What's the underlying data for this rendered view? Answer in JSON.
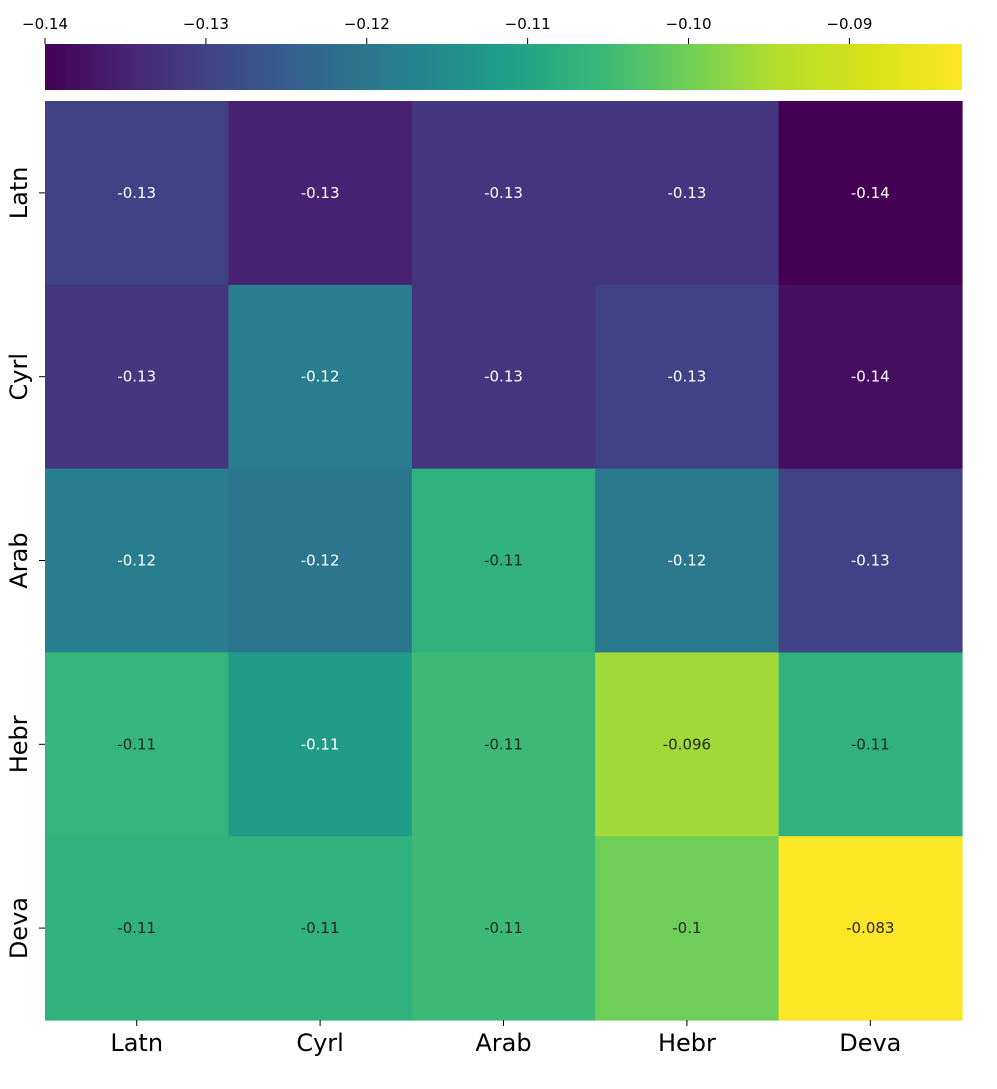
{
  "chart_data": {
    "type": "heatmap",
    "title": "",
    "xlabel": "",
    "ylabel": "",
    "rows": [
      "Latn",
      "Cyrl",
      "Arab",
      "Hebr",
      "Deva"
    ],
    "columns": [
      "Latn",
      "Cyrl",
      "Arab",
      "Hebr",
      "Deva"
    ],
    "values": [
      [
        -0.1301,
        -0.1352,
        -0.1321,
        -0.1321,
        -0.14
      ],
      [
        -0.1321,
        -0.1181,
        -0.1321,
        -0.1301,
        -0.1381
      ],
      [
        -0.1181,
        -0.1201,
        -0.1071,
        -0.1191,
        -0.1301
      ],
      [
        -0.1061,
        -0.1121,
        -0.1051,
        -0.096,
        -0.1071
      ],
      [
        -0.1071,
        -0.1071,
        -0.1051,
        -0.1,
        -0.083
      ]
    ],
    "annotations": [
      [
        "-0.13",
        "-0.13",
        "-0.13",
        "-0.13",
        "-0.14"
      ],
      [
        "-0.13",
        "-0.12",
        "-0.13",
        "-0.13",
        "-0.14"
      ],
      [
        "-0.12",
        "-0.12",
        "-0.11",
        "-0.12",
        "-0.13"
      ],
      [
        "-0.11",
        "-0.11",
        "-0.11",
        "-0.096",
        "-0.11"
      ],
      [
        "-0.11",
        "-0.11",
        "-0.11",
        "-0.1",
        "-0.083"
      ]
    ],
    "colormap": "viridis",
    "colorbar": {
      "position": "top",
      "range": [
        -0.14,
        -0.083
      ],
      "ticks": [
        -0.14,
        -0.13,
        -0.12,
        -0.11,
        -0.1,
        -0.09
      ],
      "tick_labels": [
        "−0.14",
        "−0.13",
        "−0.12",
        "−0.11",
        "−0.10",
        "−0.09"
      ]
    },
    "annotation_colors": {
      "light": "#ffffff",
      "dark": "#262626"
    }
  }
}
